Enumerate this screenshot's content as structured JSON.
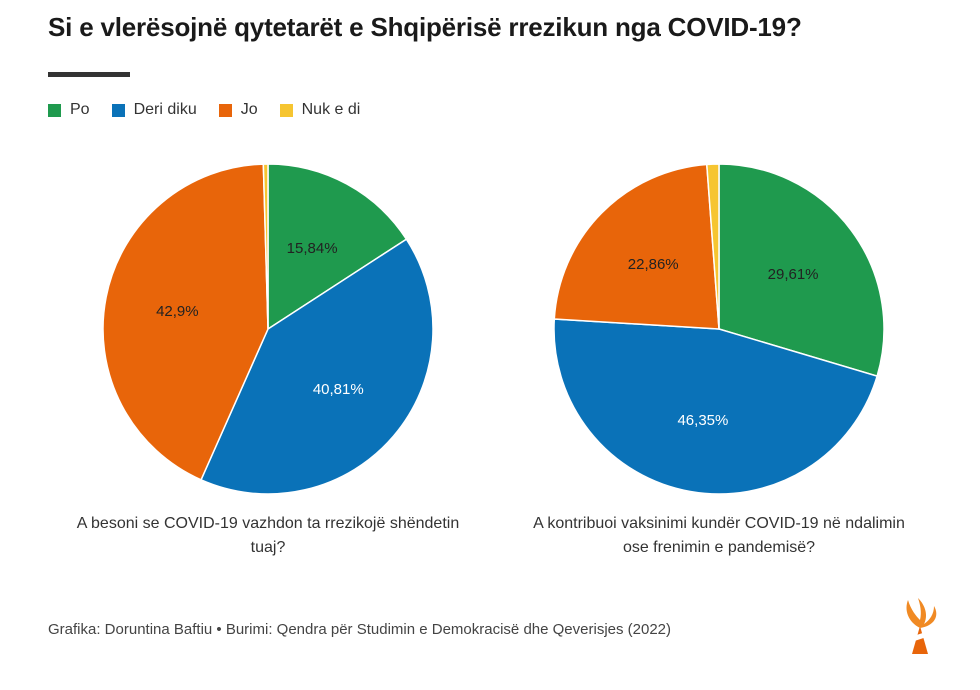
{
  "title": "Si e vlerësojnë qytetarët e Shqipërisë rrezikun nga COVID-19?",
  "legend": [
    {
      "label": "Po",
      "color": "#1f9a4e"
    },
    {
      "label": "Deri diku",
      "color": "#0a72b8"
    },
    {
      "label": "Jo",
      "color": "#e8650a"
    },
    {
      "label": "Nuk e di",
      "color": "#f6c531"
    }
  ],
  "chart_data": [
    {
      "type": "pie",
      "title": "A besoni se COVID-19 vazhdon ta rrezikojë shëndetin tuaj?",
      "slices": [
        {
          "label": "Po",
          "value": 15.84,
          "display": "15,84%",
          "color": "#1f9a4e",
          "text_color": "#222222"
        },
        {
          "label": "Deri diku",
          "value": 40.81,
          "display": "40,81%",
          "color": "#0a72b8",
          "text_color": "#ffffff"
        },
        {
          "label": "Jo",
          "value": 42.9,
          "display": "42,9%",
          "color": "#e8650a",
          "text_color": "#222222"
        },
        {
          "label": "Nuk e di",
          "value": 0.45,
          "display": "",
          "color": "#f6c531",
          "text_color": "#222222"
        }
      ]
    },
    {
      "type": "pie",
      "title": "A kontribuoi vaksinimi kundër COVID-19 në ndalimin ose frenimin e pandemisë?",
      "slices": [
        {
          "label": "Po",
          "value": 29.61,
          "display": "29,61%",
          "color": "#1f9a4e",
          "text_color": "#222222"
        },
        {
          "label": "Deri diku",
          "value": 46.35,
          "display": "46,35%",
          "color": "#0a72b8",
          "text_color": "#ffffff"
        },
        {
          "label": "Jo",
          "value": 22.86,
          "display": "22,86%",
          "color": "#e8650a",
          "text_color": "#222222"
        },
        {
          "label": "Nuk e di",
          "value": 1.18,
          "display": "",
          "color": "#f6c531",
          "text_color": "#222222"
        }
      ]
    }
  ],
  "captions": [
    "A besoni se COVID-19 vazhdon ta rrezikojë shëndetin tuaj?",
    "A kontribuoi vaksinimi kundër COVID-19 në ndalimin ose frenimin e pandemisë?"
  ],
  "footer": "Grafika: Doruntina Baftiu • Burimi: Qendra për Studimin e Demokracisë dhe Qeverisjes (2022)",
  "logo_icon": "rferl-torch-logo-icon"
}
